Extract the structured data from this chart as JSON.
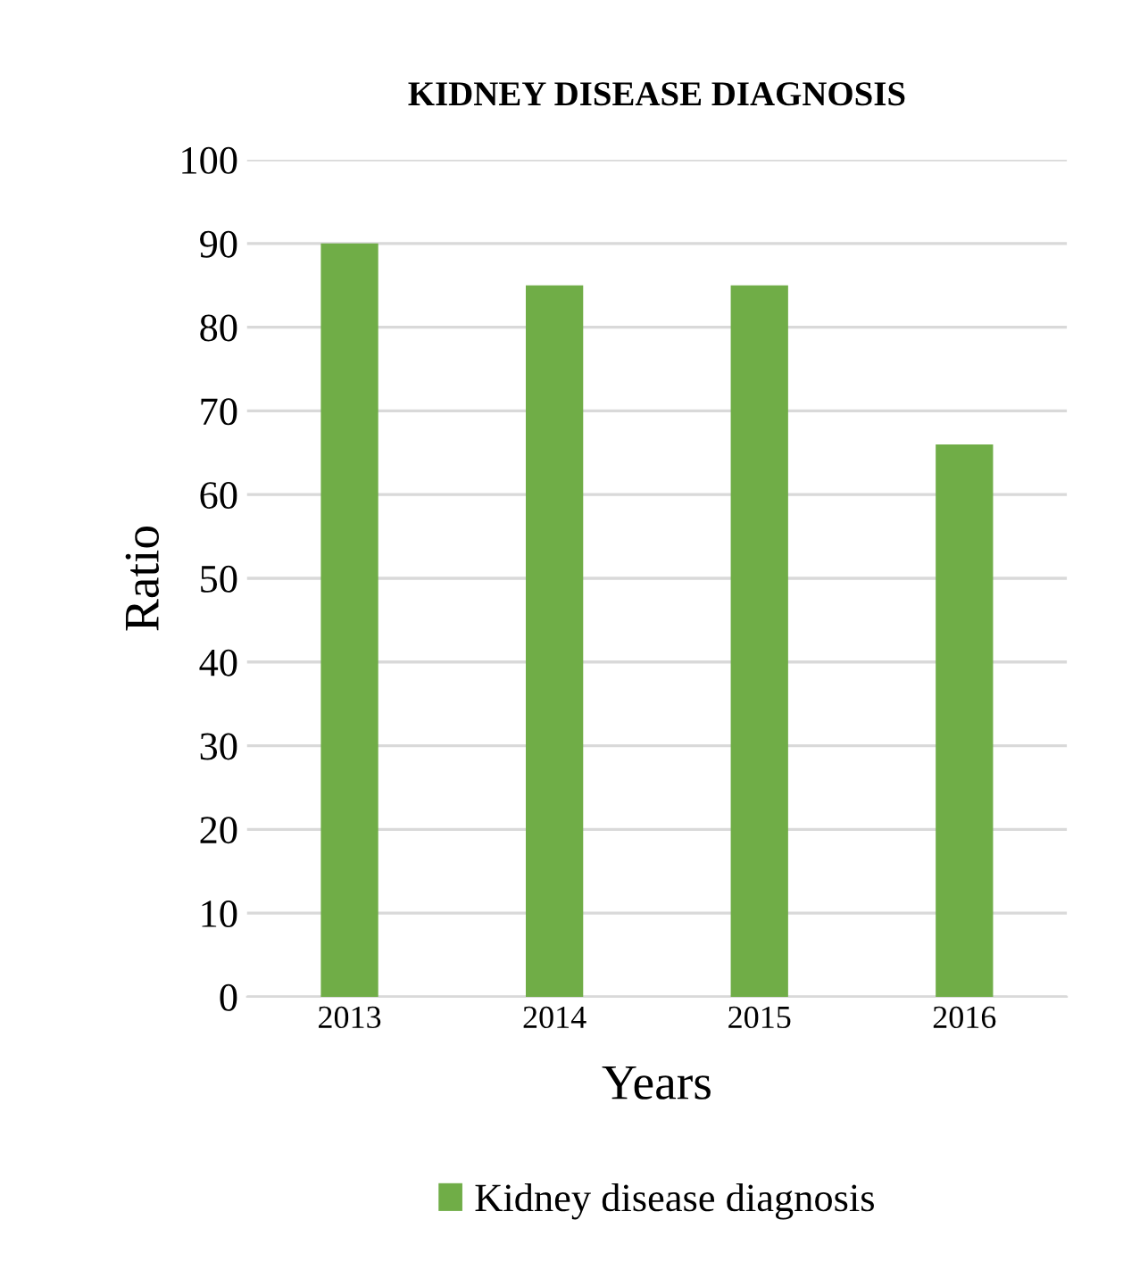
{
  "chart_data": {
    "type": "bar",
    "title": "KIDNEY DISEASE DIAGNOSIS",
    "xlabel": "Years",
    "ylabel": "Ratio",
    "categories": [
      "2013",
      "2014",
      "2015",
      "2016"
    ],
    "series": [
      {
        "name": "Kidney disease diagnosis",
        "color": "#70ad47",
        "values": [
          90,
          85,
          85,
          66
        ]
      }
    ],
    "ylim": [
      0,
      100
    ],
    "yticks": [
      0,
      10,
      20,
      30,
      40,
      50,
      60,
      70,
      80,
      90,
      100
    ],
    "grid": "y",
    "legend": "bottom"
  }
}
